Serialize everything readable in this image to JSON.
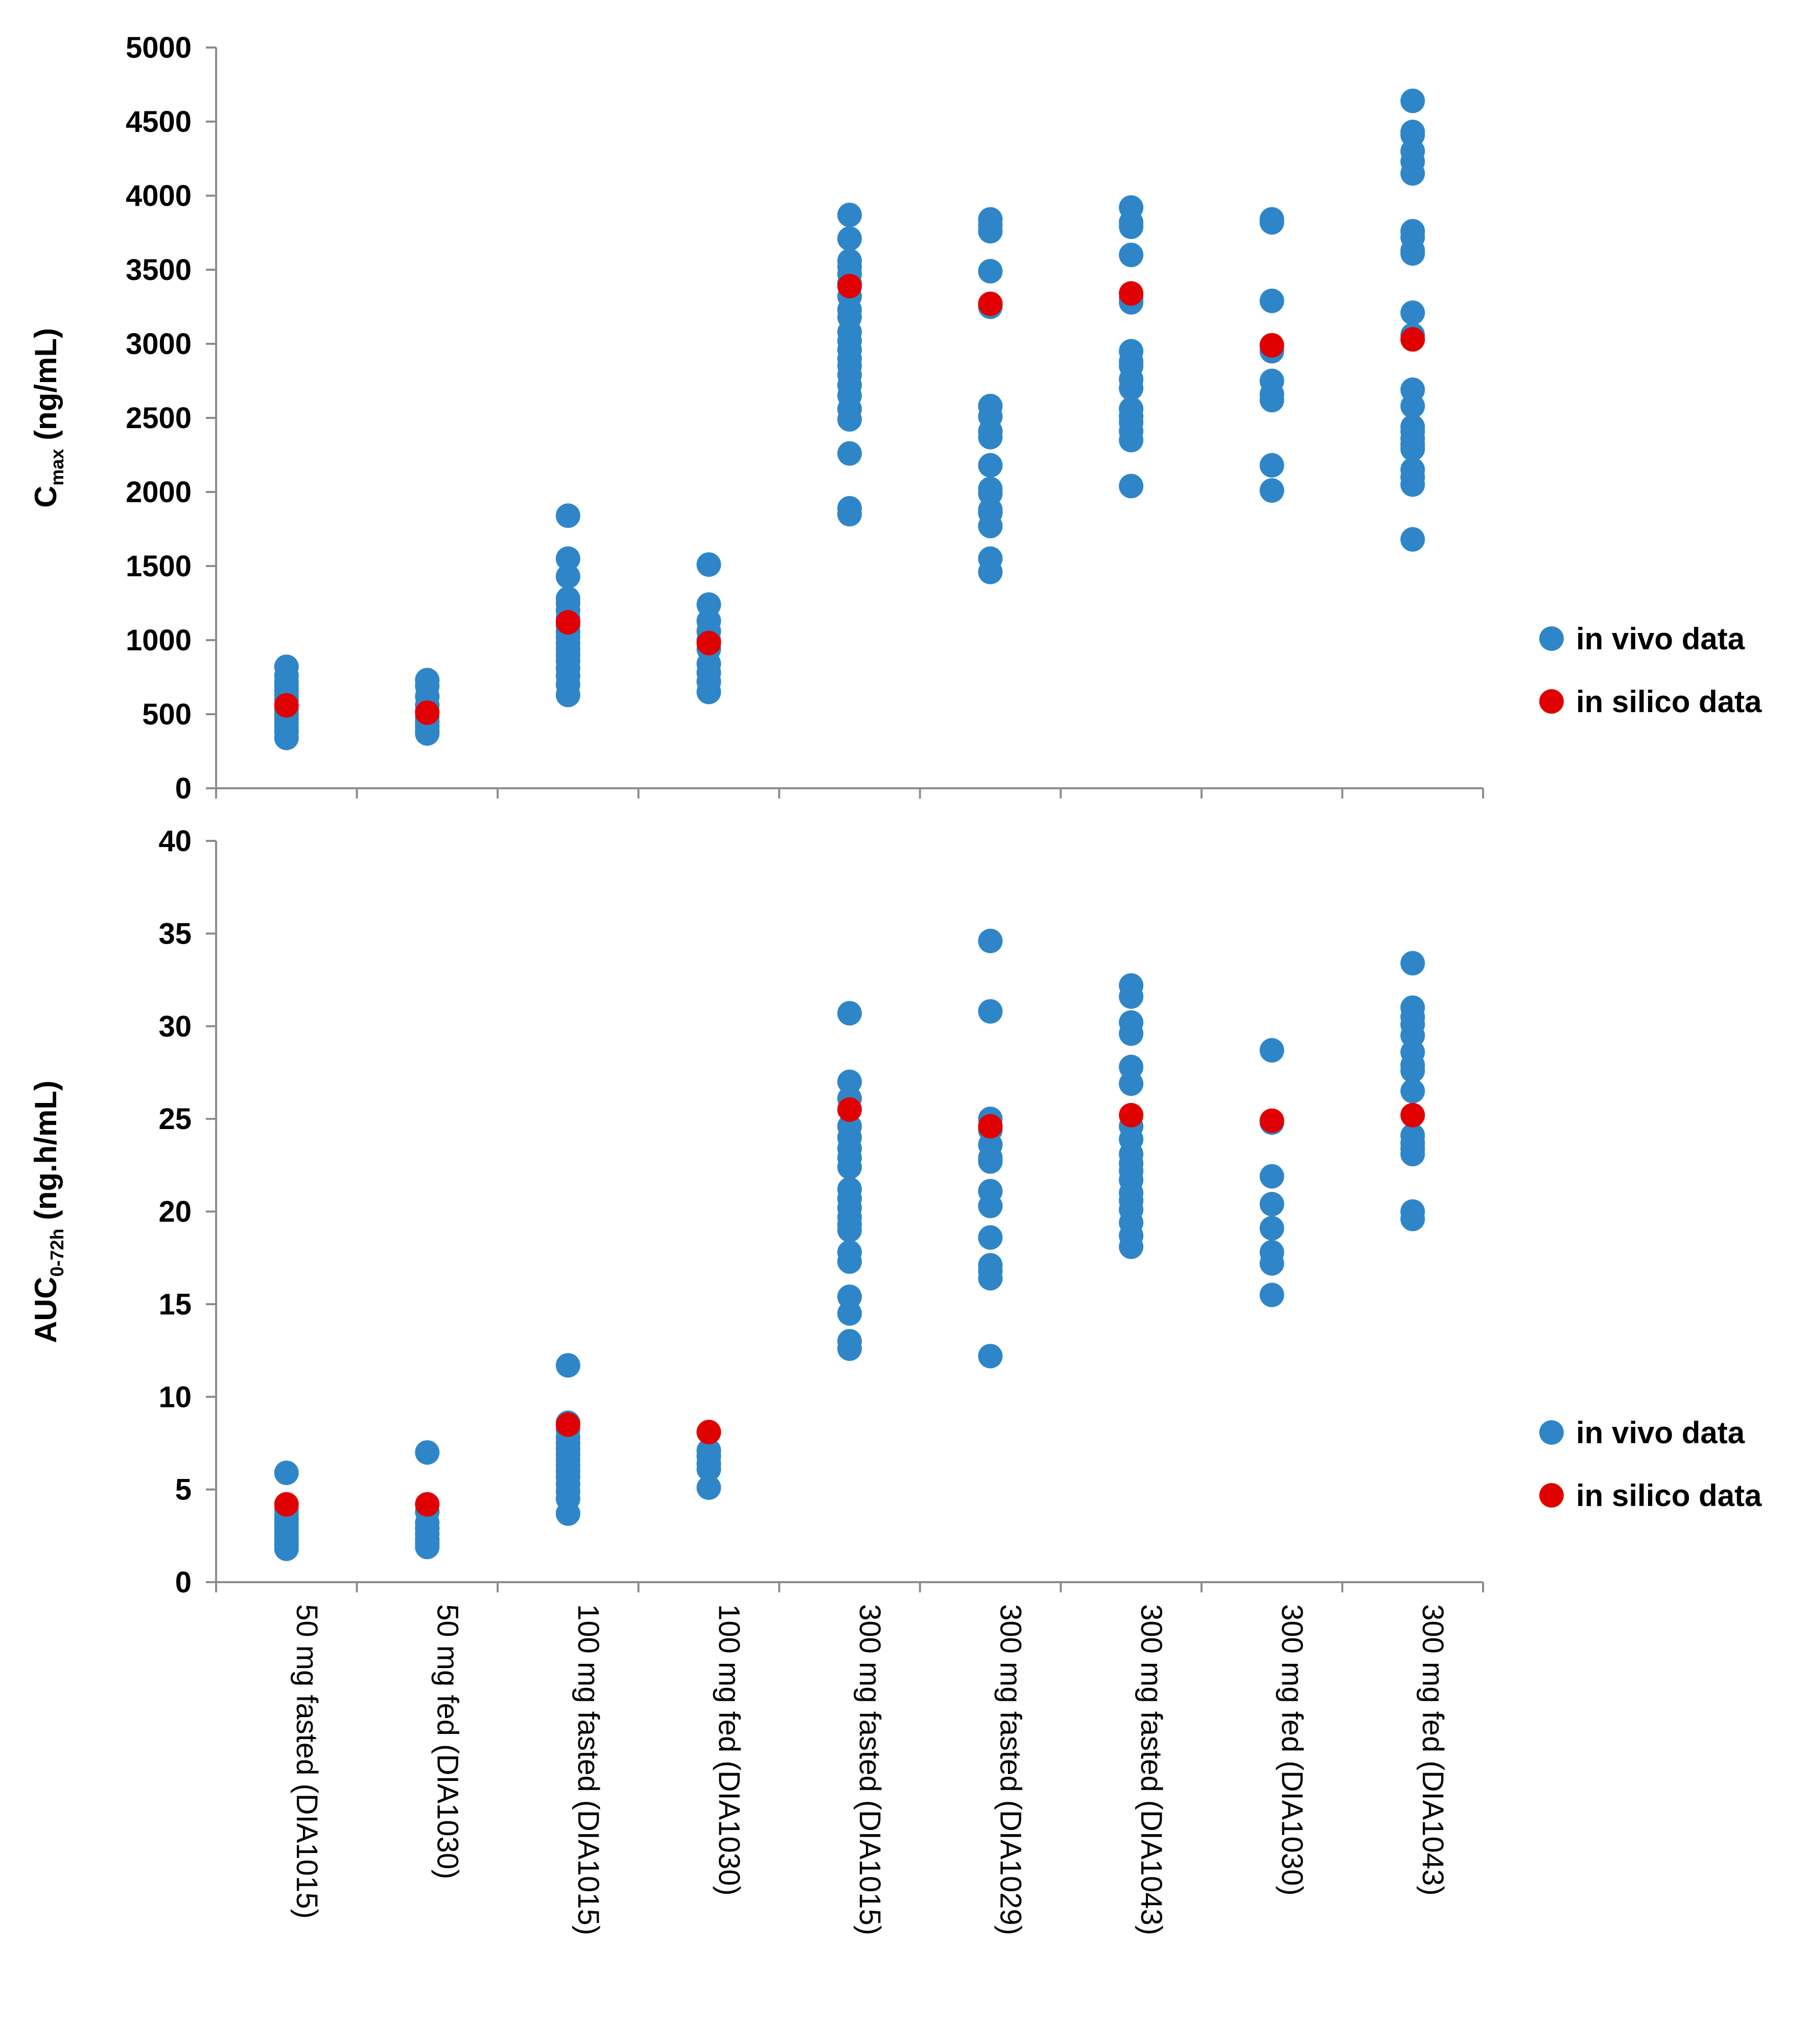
{
  "colors": {
    "in_vivo": "#2e86c8",
    "in_silico": "#e00000",
    "axis": "#8c8c8c"
  },
  "chart_data": [
    {
      "id": "cmax",
      "type": "scatter",
      "title": "",
      "ylabel_main": "C",
      "ylabel_sub": "max",
      "ylabel_rest": " (ng/mL)",
      "ylim": [
        0,
        5000
      ],
      "yticks": [
        "0",
        "500",
        "1000",
        "1500",
        "2000",
        "2500",
        "3000",
        "3500",
        "4000",
        "4500",
        "5000"
      ],
      "ytick_values": [
        0,
        500,
        1000,
        1500,
        2000,
        2500,
        3000,
        3500,
        4000,
        4500,
        5000
      ],
      "categories": [
        "50 mg fasted (DIA1015)",
        "50 mg fed (DIA1030)",
        "100 mg fasted (DIA1015)",
        "100 mg fed (DIA1030)",
        "300 mg fasted (DIA1015)",
        "300 mg fasted (DIA1029)",
        "300 mg fasted (DIA1043)",
        "300 mg fed (DIA1030)",
        "300 mg fed (DIA1043)"
      ],
      "legend": [
        "in vivo data",
        "in silico data"
      ],
      "series": [
        {
          "name": "in vivo data",
          "values": [
            [
              820,
              760,
              720,
              690,
              660,
              630,
              600,
              560,
              530,
              500,
              470,
              440,
              410,
              380,
              340
            ],
            [
              730,
              690,
              620,
              560,
              520,
              480,
              450,
              420,
              390,
              370
            ],
            [
              1840,
              1550,
              1430,
              1280,
              1250,
              1200,
              1150,
              1100,
              1060,
              1020,
              980,
              940,
              900,
              860,
              810,
              760,
              700,
              630
            ],
            [
              1510,
              1240,
              1130,
              1060,
              1000,
              940,
              840,
              780,
              720,
              650
            ],
            [
              3870,
              3710,
              3560,
              3520,
              3470,
              3410,
              3320,
              3230,
              3180,
              3080,
              3020,
              2960,
              2900,
              2850,
              2790,
              2720,
              2650,
              2560,
              2490,
              2260,
              1890,
              1850
            ],
            [
              3840,
              3800,
              3760,
              3490,
              3250,
              2580,
              2510,
              2410,
              2370,
              2180,
              2020,
              1990,
              1880,
              1860,
              1770,
              1550,
              1460
            ],
            [
              3920,
              3820,
              3790,
              3600,
              3310,
              3280,
              2950,
              2880,
              2850,
              2760,
              2700,
              2560,
              2510,
              2470,
              2410,
              2350,
              2040
            ],
            [
              3840,
              3820,
              3290,
              2990,
              2950,
              2750,
              2660,
              2620,
              2180,
              2010
            ],
            [
              4640,
              4430,
              4410,
              4300,
              4230,
              4150,
              3760,
              3720,
              3630,
              3610,
              3210,
              3060,
              2690,
              2580,
              2440,
              2410,
              2360,
              2320,
              2290,
              2150,
              2100,
              2050,
              1680
            ]
          ]
        },
        {
          "name": "in silico data",
          "values": [
            560,
            510,
            1120,
            980,
            3390,
            3270,
            3340,
            2990,
            3030
          ]
        }
      ]
    },
    {
      "id": "auc",
      "type": "scatter",
      "title": "",
      "ylabel_main": "AUC",
      "ylabel_sub": "0-72h",
      "ylabel_rest": " (ng.h/mL)",
      "ylim": [
        0,
        40
      ],
      "yticks": [
        "0",
        "5",
        "10",
        "15",
        "20",
        "25",
        "30",
        "35",
        "40"
      ],
      "ytick_values": [
        0,
        5,
        10,
        15,
        20,
        25,
        30,
        35,
        40
      ],
      "categories": [
        "50 mg fasted (DIA1015)",
        "50 mg fed (DIA1030)",
        "100 mg fasted (DIA1015)",
        "100 mg fed (DIA1030)",
        "300 mg fasted (DIA1015)",
        "300 mg fasted (DIA1029)",
        "300 mg fasted (DIA1043)",
        "300 mg fed (DIA1030)",
        "300 mg fed (DIA1043)"
      ],
      "legend": [
        "in vivo data",
        "in silico data"
      ],
      "series": [
        {
          "name": "in vivo data",
          "values": [
            [
              5.9,
              3.9,
              3.6,
              3.4,
              3.2,
              3.0,
              2.8,
              2.6,
              2.4,
              2.2,
              2.0,
              1.8
            ],
            [
              7.0,
              3.8,
              3.2,
              2.9,
              2.6,
              2.3,
              2.1,
              1.9
            ],
            [
              11.7,
              8.6,
              8.2,
              7.8,
              7.5,
              7.2,
              6.9,
              6.6,
              6.3,
              6.0,
              5.7,
              5.3,
              4.9,
              4.5,
              3.7
            ],
            [
              7.1,
              6.8,
              6.4,
              6.1,
              5.1
            ],
            [
              30.7,
              27.0,
              26.1,
              24.6,
              24.0,
              23.4,
              22.9,
              22.4,
              21.2,
              20.7,
              20.2,
              19.7,
              19.3,
              19.0,
              17.8,
              17.3,
              15.4,
              14.5,
              13.0,
              12.6
            ],
            [
              34.6,
              30.8,
              25.0,
              24.4,
              23.6,
              22.9,
              22.7,
              21.1,
              20.3,
              18.6,
              17.1,
              16.8,
              16.4,
              12.2
            ],
            [
              32.2,
              31.6,
              30.2,
              29.6,
              27.8,
              26.9,
              24.6,
              23.9,
              23.1,
              22.6,
              22.2,
              21.7,
              21.0,
              20.6,
              20.1,
              19.4,
              18.7,
              18.1
            ],
            [
              28.7,
              24.8,
              21.9,
              20.4,
              19.1,
              17.8,
              17.2,
              15.5
            ],
            [
              33.4,
              31.0,
              30.5,
              30.1,
              29.5,
              28.6,
              27.9,
              27.6,
              26.5,
              24.1,
              23.7,
              23.4,
              23.1,
              20.0,
              19.6
            ]
          ]
        },
        {
          "name": "in silico data",
          "values": [
            4.2,
            4.2,
            8.5,
            8.1,
            25.5,
            24.6,
            25.2,
            24.9,
            25.2
          ]
        }
      ]
    }
  ]
}
